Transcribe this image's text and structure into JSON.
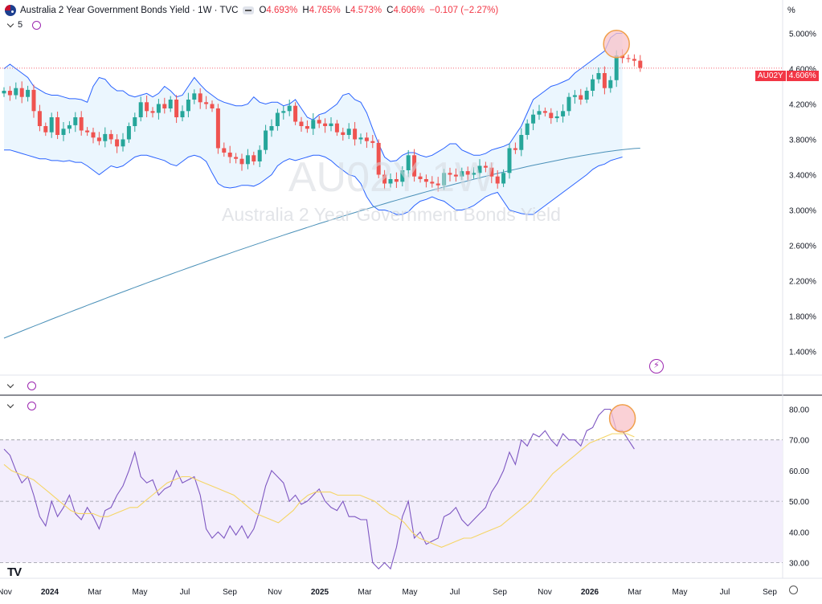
{
  "header": {
    "symbol_title": "Australia 2 Year Government Bonds Yield · 1W · TVC",
    "ohlc": {
      "open_label": "O",
      "open": "4.693%",
      "high_label": "H",
      "high": "4.765%",
      "low_label": "L",
      "low": "4.573%",
      "close_label": "C",
      "close": "4.606%",
      "change": "−0.107 (−2.27%)"
    },
    "indicator_count": "5",
    "scale_unit": "%"
  },
  "watermark": {
    "ticker": "AU02Y 1W",
    "name": "Australia 2 Year Government Bonds Yield"
  },
  "price_tag": {
    "symbol": "AU02Y",
    "value": "4.606%"
  },
  "colors": {
    "up": "#26a69a",
    "down": "#ef5350",
    "bands": "#2962ff",
    "band_fill": "#e3f2fd",
    "sma": "#4a90b8",
    "rsi": "#7e57c2",
    "rsi_ma": "#f5d565",
    "rsi_fill": "#f3eefc",
    "highlight_fill": "#f8c1c8",
    "highlight_stroke": "#f0a04b"
  },
  "chart_data": [
    {
      "type": "candlestick",
      "title": "Australia 2 Year Government Bonds Yield",
      "interval": "1W",
      "ylim": [
        1.15,
        5.15
      ],
      "y_ticks": [
        "5.000%",
        "4.600%",
        "4.200%",
        "3.800%",
        "3.400%",
        "3.000%",
        "2.600%",
        "2.200%",
        "1.800%",
        "1.400%"
      ],
      "y_tick_values": [
        5.0,
        4.6,
        4.2,
        3.8,
        3.4,
        3.0,
        2.6,
        2.2,
        1.8,
        1.4
      ],
      "x_ticks": [
        "Nov",
        "2024",
        "Mar",
        "May",
        "Jul",
        "Sep",
        "Nov",
        "2025",
        "Mar",
        "May",
        "Jul",
        "Sep",
        "Nov",
        "2026",
        "Mar",
        "May",
        "Jul",
        "Sep"
      ],
      "x_tick_months": [
        0,
        2,
        4,
        6,
        8,
        10,
        12,
        14,
        16,
        18,
        20,
        22,
        24,
        26,
        28,
        30,
        32,
        34
      ],
      "start_month": "Nov 2023",
      "close": [
        4.35,
        4.3,
        4.38,
        4.28,
        4.36,
        4.12,
        3.95,
        3.88,
        4.05,
        3.85,
        3.92,
        3.96,
        4.05,
        3.9,
        3.88,
        3.82,
        3.78,
        3.86,
        3.8,
        3.72,
        3.8,
        3.95,
        4.05,
        4.22,
        4.12,
        4.1,
        4.2,
        4.15,
        4.25,
        4.05,
        4.12,
        4.25,
        4.32,
        4.22,
        4.2,
        4.15,
        3.7,
        3.65,
        3.6,
        3.58,
        3.52,
        3.62,
        3.55,
        3.68,
        3.9,
        3.95,
        4.1,
        4.12,
        4.18,
        4.0,
        3.95,
        3.92,
        4.02,
        3.98,
        3.95,
        3.98,
        3.88,
        3.85,
        3.92,
        3.8,
        3.82,
        3.78,
        3.76,
        3.4,
        3.3,
        3.35,
        3.32,
        3.45,
        3.62,
        3.38,
        3.35,
        3.32,
        3.3,
        3.28,
        3.42,
        3.4,
        3.38,
        3.44,
        3.4,
        3.42,
        3.5,
        3.48,
        3.38,
        3.3,
        3.42,
        3.7,
        3.68,
        3.85,
        3.98,
        4.08,
        4.12,
        4.1,
        4.04,
        4.06,
        4.12,
        4.28,
        4.3,
        4.25,
        4.35,
        4.48,
        4.55,
        4.38,
        4.47,
        4.75,
        4.72,
        4.71,
        4.69,
        4.61
      ],
      "bollinger_upper_approx": [
        4.6,
        4.65,
        4.6,
        4.55,
        4.5,
        4.4,
        4.36,
        4.32,
        4.3,
        4.3,
        4.28,
        4.26,
        4.26,
        4.25,
        4.22,
        4.4,
        4.5,
        4.48,
        4.4,
        4.35,
        4.35,
        4.3,
        4.28,
        4.3,
        4.32,
        4.28,
        4.32,
        4.4,
        4.35,
        4.28,
        4.3,
        4.4,
        4.5,
        4.42,
        4.35,
        4.3,
        4.25,
        4.22,
        4.2,
        4.18,
        4.18,
        4.2,
        4.28,
        4.22,
        4.2,
        4.22,
        4.22,
        4.18,
        4.2,
        4.25,
        4.15,
        4.05,
        4.02,
        4.08,
        4.1,
        4.15,
        4.2,
        4.3,
        4.32,
        4.25,
        4.22,
        4.1,
        3.92,
        3.75,
        3.6,
        3.55,
        3.56,
        3.62,
        3.65,
        3.65,
        3.62,
        3.6,
        3.62,
        3.66,
        3.7,
        3.75,
        3.75,
        3.68,
        3.65,
        3.62,
        3.62,
        3.64,
        3.68,
        3.7,
        3.72,
        3.75,
        3.85,
        3.95,
        4.1,
        4.25,
        4.3,
        4.35,
        4.4,
        4.42,
        4.45,
        4.48,
        4.55,
        4.6,
        4.65,
        4.7,
        4.75,
        4.8,
        4.95,
        5.0,
        5.0
      ],
      "bollinger_lower_approx": [
        3.68,
        3.68,
        3.66,
        3.64,
        3.62,
        3.6,
        3.58,
        3.58,
        3.56,
        3.56,
        3.55,
        3.56,
        3.54,
        3.54,
        3.5,
        3.45,
        3.4,
        3.45,
        3.5,
        3.48,
        3.5,
        3.55,
        3.6,
        3.62,
        3.62,
        3.6,
        3.58,
        3.56,
        3.52,
        3.5,
        3.55,
        3.6,
        3.62,
        3.6,
        3.55,
        3.42,
        3.3,
        3.26,
        3.25,
        3.26,
        3.28,
        3.28,
        3.27,
        3.3,
        3.35,
        3.4,
        3.5,
        3.55,
        3.58,
        3.56,
        3.58,
        3.6,
        3.62,
        3.62,
        3.6,
        3.56,
        3.5,
        3.45,
        3.4,
        3.38,
        3.3,
        3.15,
        3.05,
        3.0,
        3.0,
        2.98,
        2.95,
        2.95,
        2.98,
        3.05,
        3.1,
        3.12,
        3.15,
        3.12,
        3.1,
        3.05,
        3.0,
        3.0,
        3.02,
        3.05,
        3.1,
        3.15,
        3.18,
        3.2,
        3.1,
        3.0,
        2.98,
        2.96,
        2.95,
        2.95,
        3.0,
        3.05,
        3.1,
        3.15,
        3.2,
        3.25,
        3.3,
        3.35,
        3.4,
        3.46,
        3.5,
        3.52,
        3.56,
        3.58,
        3.6,
        3.62,
        3.6,
        3.65,
        3.78
      ],
      "sma_start": 1.55,
      "sma_end": 3.7,
      "current_price": 4.606
    },
    {
      "type": "line",
      "title": "",
      "ylim": [
        27,
        83
      ],
      "y_ticks": [
        "80.00",
        "70.00",
        "60.00",
        "50.00",
        "40.00",
        "30.00"
      ],
      "y_tick_values": [
        80,
        70,
        60,
        50,
        40,
        30
      ],
      "band_top": 70,
      "band_mid": 50,
      "band_bottom": 30,
      "rsi": [
        67,
        65,
        60,
        56,
        58,
        52,
        45,
        42,
        50,
        45,
        48,
        52,
        46,
        44,
        48,
        45,
        41,
        47,
        48,
        52,
        55,
        60,
        66,
        58,
        56,
        57,
        52,
        54,
        55,
        60,
        56,
        57,
        58,
        52,
        41,
        38,
        40,
        38,
        42,
        39,
        42,
        38,
        41,
        47,
        55,
        60,
        58,
        56,
        50,
        52,
        49,
        50,
        52,
        54,
        50,
        48,
        47,
        50,
        45,
        45,
        44,
        44,
        30,
        28,
        30,
        28,
        35,
        45,
        50,
        38,
        40,
        36,
        37,
        38,
        45,
        46,
        48,
        44,
        42,
        44,
        46,
        48,
        53,
        56,
        60,
        66,
        62,
        70,
        68,
        72,
        71,
        73,
        70,
        68,
        72,
        70,
        70,
        68,
        73,
        74,
        78,
        80,
        80,
        73,
        73,
        70,
        67
      ],
      "rsi_ma_approx": [
        62,
        60,
        59,
        58,
        57,
        55,
        53,
        51,
        49,
        47,
        46,
        46,
        46,
        45,
        45,
        46,
        47,
        48,
        48,
        50,
        52,
        54,
        56,
        57,
        58,
        58,
        57,
        56,
        55,
        54,
        53,
        52,
        50,
        48,
        46,
        45,
        44,
        43,
        45,
        47,
        50,
        52,
        53,
        53,
        53,
        52,
        52,
        52,
        52,
        51,
        50,
        48,
        46,
        45,
        43,
        40,
        38,
        37,
        36,
        35,
        36,
        37,
        38,
        38,
        39,
        40,
        41,
        42,
        44,
        46,
        48,
        50,
        53,
        56,
        59,
        61,
        63,
        65,
        67,
        69,
        70,
        71,
        72,
        72,
        72,
        71
      ]
    }
  ]
}
